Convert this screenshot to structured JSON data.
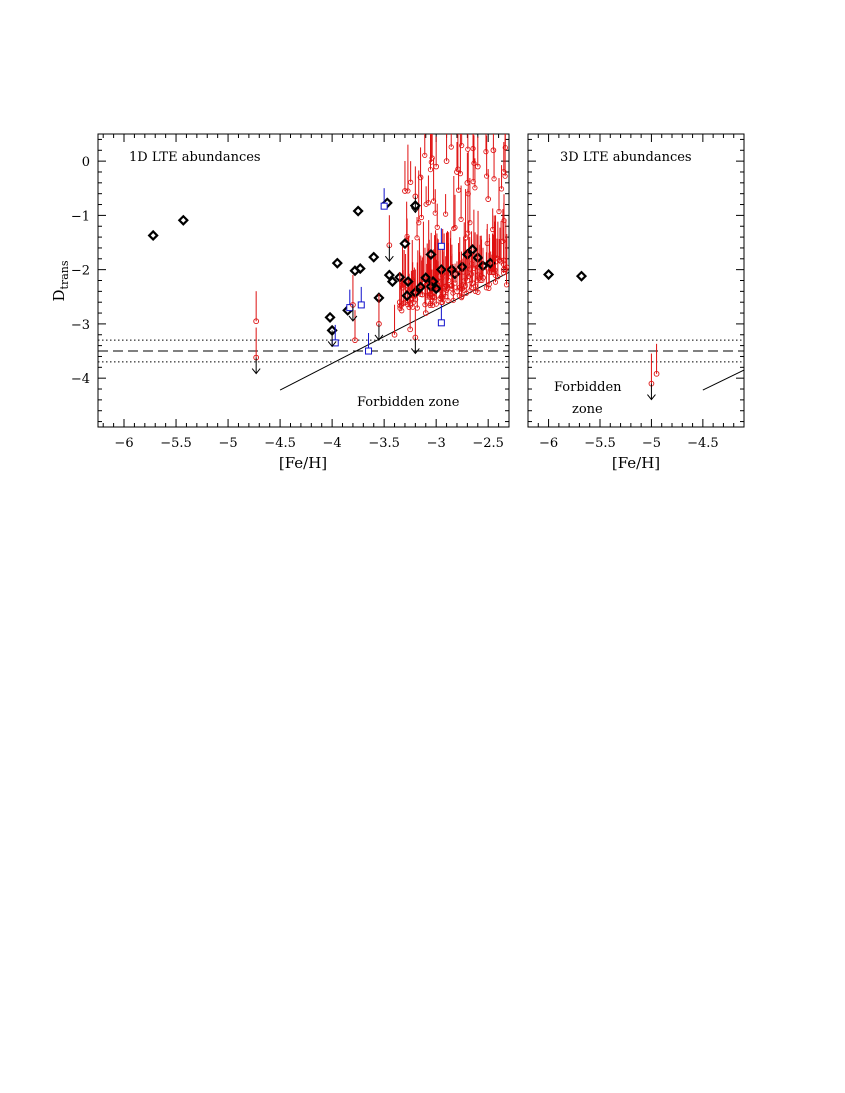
{
  "chart_data": [
    {
      "type": "scatter",
      "panel_label": "1D LTE abundances",
      "annotation": "Forbidden zone",
      "xlabel": "[Fe/H]",
      "ylabel_main": "D",
      "ylabel_sub": "trans",
      "xlim": [
        -6.25,
        -2.3
      ],
      "ylim": [
        -4.9,
        0.5
      ],
      "xticks": [
        -6,
        -5.5,
        -5,
        -4.5,
        -4,
        -3.5,
        -3,
        -2.5
      ],
      "xtick_labels": [
        "−6",
        "−5.5",
        "−5",
        "−4.5",
        "−4",
        "−3.5",
        "−3",
        "−2.5"
      ],
      "yticks": [
        0,
        -1,
        -2,
        -3,
        -4
      ],
      "ytick_labels": [
        "0",
        "−1",
        "−2",
        "−3",
        "−4"
      ],
      "reference_lines": {
        "dashed": -3.5,
        "dotted": [
          -3.3,
          -3.7
        ]
      },
      "forbidden_line": [
        [
          -4.5,
          -4.22
        ],
        [
          -2.3,
          -2.05
        ]
      ],
      "series": [
        {
          "marker": "diamond",
          "color": "#000000",
          "points": [
            [
              -5.72,
              -1.37
            ],
            [
              -5.43,
              -1.09
            ],
            [
              -3.75,
              -0.92
            ],
            [
              -3.2,
              -0.82
            ],
            [
              -3.47,
              -0.77
            ],
            [
              -3.95,
              -1.88
            ],
            [
              -3.78,
              -2.02
            ],
            [
              -3.73,
              -1.98
            ],
            [
              -3.6,
              -1.77
            ],
            [
              -3.3,
              -1.52
            ],
            [
              -3.05,
              -1.72
            ],
            [
              -3.45,
              -2.1
            ],
            [
              -3.35,
              -2.14
            ],
            [
              -3.42,
              -2.22
            ],
            [
              -3.27,
              -2.22
            ],
            [
              -3.2,
              -2.42
            ],
            [
              -3.28,
              -2.48
            ],
            [
              -3.55,
              -2.52
            ],
            [
              -3.1,
              -2.15
            ],
            [
              -3.03,
              -2.22
            ],
            [
              -3.0,
              -2.35
            ],
            [
              -2.95,
              -2.0
            ],
            [
              -2.85,
              -2.0
            ],
            [
              -2.82,
              -2.08
            ],
            [
              -2.75,
              -1.95
            ],
            [
              -2.7,
              -1.72
            ],
            [
              -2.65,
              -1.63
            ],
            [
              -2.6,
              -1.78
            ],
            [
              -2.55,
              -1.93
            ],
            [
              -2.48,
              -1.88
            ],
            [
              -4.02,
              -2.88
            ],
            [
              -3.85,
              -2.75
            ],
            [
              -4.0,
              -3.12
            ],
            [
              -3.05,
              -2.31
            ],
            [
              -3.15,
              -2.32
            ]
          ]
        },
        {
          "marker": "square",
          "color": "#1010cc",
          "points": [
            [
              -3.5,
              -0.83
            ],
            [
              -2.95,
              -1.57
            ],
            [
              -2.95,
              -2.98
            ],
            [
              -3.83,
              -2.7
            ],
            [
              -3.72,
              -2.65
            ],
            [
              -3.65,
              -3.5
            ],
            [
              -3.97,
              -3.35
            ]
          ]
        },
        {
          "marker": "open-circle",
          "color": "#dd1111",
          "points": [
            [
              -4.73,
              -2.95
            ],
            [
              -4.73,
              -3.62
            ],
            [
              -3.2,
              -0.65
            ],
            [
              -3.45,
              -1.55
            ],
            [
              -3.8,
              -2.65
            ],
            [
              -3.78,
              -3.3
            ],
            [
              -3.55,
              -3.0
            ],
            [
              -3.4,
              -3.2
            ],
            [
              -3.25,
              -3.1
            ],
            [
              -3.2,
              -3.25
            ],
            [
              -3.1,
              -2.8
            ],
            [
              -2.95,
              -2.6
            ],
            [
              -2.9,
              -2.3
            ],
            [
              -2.8,
              -2.4
            ],
            [
              -2.7,
              -2.2
            ],
            [
              -2.6,
              -2.1
            ],
            [
              -2.45,
              -2.0
            ],
            [
              -2.35,
              -1.9
            ],
            [
              -3.3,
              -0.55
            ],
            [
              -3.15,
              -0.3
            ],
            [
              -3.0,
              -0.1
            ],
            [
              -2.9,
              0.0
            ],
            [
              -2.8,
              -0.2
            ],
            [
              -2.7,
              -0.4
            ],
            [
              -2.6,
              -0.1
            ],
            [
              -2.5,
              -0.7
            ],
            [
              -2.45,
              0.2
            ],
            [
              -2.35,
              -0.2
            ],
            [
              -3.35,
              -2.6
            ],
            [
              -3.2,
              -2.55
            ],
            [
              -3.05,
              -2.45
            ],
            [
              -2.95,
              -2.5
            ],
            [
              -2.85,
              -2.3
            ],
            [
              -2.75,
              -2.35
            ],
            [
              -2.65,
              -2.25
            ],
            [
              -2.55,
              -2.15
            ],
            [
              -2.45,
              -2.05
            ],
            [
              -2.35,
              -2.0
            ]
          ]
        }
      ],
      "upper_limits": [
        [
          -4.73,
          -3.62
        ],
        [
          -3.2,
          -0.65
        ],
        [
          -3.45,
          -1.55
        ],
        [
          -3.8,
          -2.65
        ],
        [
          -3.55,
          -3.0
        ],
        [
          -3.2,
          -3.25
        ],
        [
          -4.0,
          -3.12
        ]
      ]
    },
    {
      "type": "scatter",
      "panel_label": "3D LTE abundances",
      "annotation_line1": "Forbidden",
      "annotation_line2": "zone",
      "xlabel": "[Fe/H]",
      "xlim": [
        -6.2,
        -4.1
      ],
      "ylim": [
        -4.9,
        0.5
      ],
      "xticks": [
        -6,
        -5.5,
        -5,
        -4.5
      ],
      "xtick_labels": [
        "−6",
        "−5.5",
        "−5",
        "−4.5"
      ],
      "reference_lines": {
        "dashed": -3.5,
        "dotted": [
          -3.3,
          -3.7
        ]
      },
      "forbidden_line": [
        [
          -4.5,
          -4.22
        ],
        [
          -4.1,
          -3.85
        ]
      ],
      "series": [
        {
          "marker": "diamond",
          "color": "#000000",
          "points": [
            [
              -6.0,
              -2.09
            ],
            [
              -5.68,
              -2.12
            ]
          ]
        },
        {
          "marker": "open-circle",
          "color": "#dd1111",
          "points": [
            [
              -5.0,
              -4.1
            ],
            [
              -4.95,
              -3.92
            ]
          ]
        }
      ],
      "upper_limits": [
        [
          -5.0,
          -4.1
        ]
      ]
    }
  ]
}
